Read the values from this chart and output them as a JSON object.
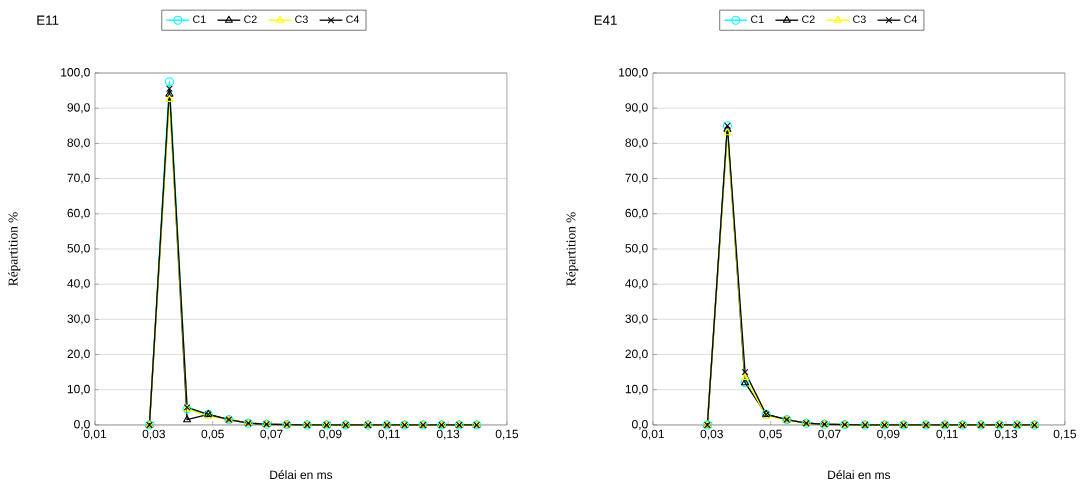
{
  "chart_data": [
    {
      "type": "line",
      "title": "E11",
      "xlabel": "Délai en ms",
      "ylabel": "Répartition %",
      "x": [
        0.0285,
        0.0353,
        0.0413,
        0.0485,
        0.0555,
        0.0621,
        0.0683,
        0.0752,
        0.0821,
        0.0887,
        0.0952,
        0.1028,
        0.1092,
        0.1152,
        0.1215,
        0.1278,
        0.1338,
        0.1397
      ],
      "series": [
        {
          "name": "C1",
          "color": "#00ffff",
          "marker": "circle",
          "values": [
            0,
            97.5,
            4.5,
            3,
            1.5,
            0.5,
            0.2,
            0.1,
            0,
            0,
            0,
            0,
            0,
            0,
            0,
            0,
            0,
            0
          ]
        },
        {
          "name": "C2",
          "color": "#000000",
          "marker": "triangle",
          "values": [
            0,
            94,
            1.5,
            3,
            1.5,
            0.5,
            0.2,
            0.1,
            0,
            0,
            0,
            0,
            0,
            0,
            0,
            0,
            0,
            0
          ]
        },
        {
          "name": "C3",
          "color": "#ffff00",
          "marker": "triangle",
          "values": [
            0,
            92.5,
            4.5,
            2.5,
            1.5,
            0.5,
            0.2,
            0.1,
            0,
            0,
            0,
            0,
            0,
            0,
            0,
            0,
            0,
            0
          ]
        },
        {
          "name": "C4",
          "color": "#0a0a0a",
          "marker": "cross",
          "values": [
            0,
            95.5,
            5,
            3,
            1.5,
            0.5,
            0.2,
            0.1,
            0,
            0,
            0,
            0,
            0,
            0,
            0,
            0,
            0,
            0
          ]
        }
      ],
      "xlim": [
        0.01,
        0.15
      ],
      "xticks": [
        {
          "value": 0.01,
          "label": "0,01"
        },
        {
          "value": 0.03,
          "label": "0,03"
        },
        {
          "value": 0.05,
          "label": "0,05"
        },
        {
          "value": 0.07,
          "label": "0,07"
        },
        {
          "value": 0.09,
          "label": "0,09"
        },
        {
          "value": 0.11,
          "label": "0,11"
        },
        {
          "value": 0.13,
          "label": "0,13"
        },
        {
          "value": 0.15,
          "label": "0,15"
        }
      ],
      "ylim": [
        0,
        100
      ],
      "yticks": [
        {
          "value": 0,
          "label": "0,0"
        },
        {
          "value": 10,
          "label": "10,0"
        },
        {
          "value": 20,
          "label": "20,0"
        },
        {
          "value": 30,
          "label": "30,0"
        },
        {
          "value": 40,
          "label": "40,0"
        },
        {
          "value": 50,
          "label": "50,0"
        },
        {
          "value": 60,
          "label": "60,0"
        },
        {
          "value": 70,
          "label": "70,0"
        },
        {
          "value": 80,
          "label": "80,0"
        },
        {
          "value": 90,
          "label": "90,0"
        },
        {
          "value": 100,
          "label": "100,0"
        }
      ],
      "grid": "y",
      "legend": "top"
    },
    {
      "type": "line",
      "title": "E41",
      "xlabel": "Délai en ms",
      "ylabel": "Répartition %",
      "x": [
        0.0285,
        0.0353,
        0.0413,
        0.0485,
        0.0555,
        0.0621,
        0.0683,
        0.0752,
        0.0821,
        0.0887,
        0.0952,
        0.1028,
        0.1092,
        0.1152,
        0.1215,
        0.1278,
        0.1338,
        0.1397
      ],
      "series": [
        {
          "name": "C1",
          "color": "#00ffff",
          "marker": "circle",
          "values": [
            0,
            85,
            12,
            3,
            1.5,
            0.5,
            0.2,
            0.1,
            0,
            0,
            0,
            0,
            0,
            0,
            0,
            0,
            0,
            0
          ]
        },
        {
          "name": "C2",
          "color": "#000000",
          "marker": "triangle",
          "values": [
            0,
            84,
            12,
            3,
            1.5,
            0.5,
            0.2,
            0.1,
            0,
            0,
            0,
            0,
            0,
            0,
            0,
            0,
            0,
            0
          ]
        },
        {
          "name": "C3",
          "color": "#ffff00",
          "marker": "triangle",
          "values": [
            0,
            83,
            13.5,
            2.5,
            1.5,
            0.5,
            0.2,
            0.1,
            0,
            0,
            0,
            0,
            0,
            0,
            0,
            0,
            0,
            0
          ]
        },
        {
          "name": "C4",
          "color": "#0a0a0a",
          "marker": "cross",
          "values": [
            0,
            85,
            15,
            3,
            1.5,
            0.5,
            0.2,
            0.1,
            0,
            0,
            0,
            0,
            0,
            0,
            0,
            0,
            0,
            0
          ]
        }
      ],
      "xlim": [
        0.01,
        0.15
      ],
      "xticks": [
        {
          "value": 0.01,
          "label": "0,01"
        },
        {
          "value": 0.03,
          "label": "0,03"
        },
        {
          "value": 0.05,
          "label": "0,05"
        },
        {
          "value": 0.07,
          "label": "0,07"
        },
        {
          "value": 0.09,
          "label": "0,09"
        },
        {
          "value": 0.11,
          "label": "0,11"
        },
        {
          "value": 0.13,
          "label": "0,13"
        },
        {
          "value": 0.15,
          "label": "0,15"
        }
      ],
      "ylim": [
        0,
        100
      ],
      "yticks": [
        {
          "value": 0,
          "label": "0,0"
        },
        {
          "value": 10,
          "label": "10,0"
        },
        {
          "value": 20,
          "label": "20,0"
        },
        {
          "value": 30,
          "label": "30,0"
        },
        {
          "value": 40,
          "label": "40,0"
        },
        {
          "value": 50,
          "label": "50,0"
        },
        {
          "value": 60,
          "label": "60,0"
        },
        {
          "value": 70,
          "label": "70,0"
        },
        {
          "value": 80,
          "label": "80,0"
        },
        {
          "value": 90,
          "label": "90,0"
        },
        {
          "value": 100,
          "label": "100,0"
        }
      ],
      "grid": "y",
      "legend": "top"
    }
  ]
}
